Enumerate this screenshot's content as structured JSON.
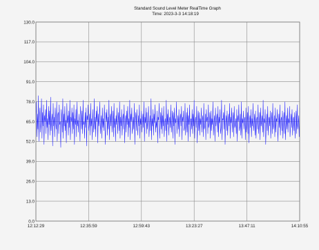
{
  "chart_data": {
    "type": "line",
    "title": "Standard Sound Level Meter RealTime Graph",
    "subtitle": "Time: 2023-3-3  14:18:19",
    "xlabel": "",
    "ylabel": "",
    "ylim": [
      0,
      130
    ],
    "y_ticks": [
      "130.0",
      "117.0",
      "104.0",
      "91.0",
      "78.0",
      "65.0",
      "52.0",
      "39.0",
      "26.0",
      "13.0",
      "0.0"
    ],
    "x_ticks": [
      "12:12:29",
      "12:35:59",
      "12:59:43",
      "13:23:27",
      "13:47:11",
      "14:10:55"
    ],
    "grid": true,
    "series": [
      {
        "color": "#2020ff",
        "x_range": [
          "12:12:29",
          "14:10:55"
        ],
        "mean": 64,
        "typical_min": 47,
        "typical_max": 79,
        "values": [
          64,
          78,
          55,
          70,
          60,
          82,
          52,
          68,
          74,
          58,
          66,
          80,
          54,
          71,
          62,
          76,
          50,
          69,
          65,
          73,
          57,
          79,
          61,
          67,
          53,
          75,
          63,
          72,
          56,
          81,
          59,
          66,
          70,
          49,
          77,
          62,
          68,
          55,
          74,
          64,
          60,
          78,
          52,
          69,
          71,
          57,
          76,
          63,
          65,
          48,
          73,
          67,
          58,
          80,
          54,
          70,
          62,
          75,
          59,
          66,
          51,
          77,
          64,
          69,
          56,
          72,
          61,
          79,
          53,
          68,
          65,
          74,
          57,
          71,
          60,
          76,
          50,
          67,
          63,
          73,
          55,
          78,
          62,
          66,
          58,
          70,
          64,
          52,
          75,
          68,
          60,
          72,
          57,
          79,
          63,
          65,
          54,
          71,
          61,
          74,
          49,
          69,
          66,
          76,
          59,
          63,
          70,
          56,
          77,
          62,
          67,
          53,
          73,
          64,
          58,
          80,
          60,
          68,
          55,
          72,
          65,
          75,
          51,
          70,
          62,
          66,
          78,
          57,
          64,
          69,
          54,
          74,
          61,
          67,
          59,
          76,
          63,
          50,
          71,
          65,
          73,
          56,
          68,
          60,
          79,
          53,
          66,
          70,
          62,
          75,
          58,
          64,
          72,
          55,
          77,
          61,
          67,
          52,
          69,
          63,
          74,
          57,
          65,
          71,
          59,
          78,
          54,
          68,
          62,
          73,
          56,
          66,
          70,
          60,
          76,
          51,
          64,
          69,
          58,
          72,
          63,
          75,
          55,
          67,
          61,
          79,
          53,
          70,
          65,
          74,
          57,
          62,
          68,
          60,
          77,
          50,
          66,
          71,
          59,
          73,
          64,
          56,
          69,
          62,
          76,
          54,
          67,
          63,
          72,
          58,
          65,
          70,
          61,
          78,
          52,
          68,
          64,
          74,
          57,
          71,
          60,
          66,
          75,
          55,
          63,
          69,
          59,
          80,
          53,
          67,
          62,
          73,
          56,
          70,
          64,
          76,
          58,
          65,
          61,
          72,
          51,
          68,
          66,
          77,
          54,
          63,
          71,
          60,
          74,
          57,
          69,
          62,
          75,
          55,
          64,
          67,
          59,
          79,
          52,
          70,
          63,
          73,
          56,
          66,
          68,
          61,
          76,
          58,
          65,
          72,
          54,
          71,
          62,
          74,
          50,
          67,
          64,
          78,
          57,
          63,
          69,
          60,
          73,
          55,
          66,
          70,
          62,
          75,
          53,
          68,
          65,
          72,
          59,
          61,
          77,
          56,
          64,
          71,
          58,
          74,
          52,
          69,
          63,
          76,
          55,
          66,
          67,
          60,
          73,
          57,
          70,
          62,
          79,
          54,
          65,
          68,
          61,
          75,
          51,
          64,
          72,
          59,
          71,
          56,
          67,
          63,
          74,
          58,
          66,
          69,
          55,
          77,
          60,
          62,
          70,
          53,
          73,
          65,
          68,
          57,
          76,
          61,
          64,
          71,
          54,
          72,
          59,
          67,
          63,
          78,
          56,
          65,
          69,
          52,
          74,
          62,
          66,
          70,
          58,
          75,
          55,
          68,
          64,
          73,
          57,
          61,
          79,
          53,
          67,
          66,
          71,
          60,
          76,
          50,
          63,
          69,
          59,
          72,
          56,
          65,
          70,
          62,
          77,
          54,
          68,
          64,
          74,
          58,
          66,
          71,
          55,
          75,
          61,
          63,
          67,
          57,
          73,
          52,
          69,
          65,
          76,
          59,
          62,
          70,
          56,
          78,
          54,
          67,
          64,
          72,
          60,
          66,
          68,
          53,
          74,
          58,
          63,
          71,
          57,
          75,
          51,
          65,
          69,
          61,
          73,
          55,
          67,
          62,
          77,
          59,
          64,
          70,
          56,
          72,
          54,
          66,
          68,
          60,
          76,
          57,
          63,
          71,
          53,
          74,
          62,
          65,
          69,
          58,
          79,
          55,
          67,
          64,
          73,
          50,
          61,
          70,
          59,
          75,
          56,
          66,
          68,
          62,
          72,
          54,
          64,
          71,
          57,
          77,
          60,
          63,
          69,
          55,
          74,
          58,
          67,
          65,
          73,
          52,
          62,
          70,
          61,
          76,
          56,
          66,
          68,
          59,
          72,
          54,
          65,
          71,
          57,
          78,
          53,
          63,
          69,
          60,
          74,
          58,
          67,
          64,
          75,
          55,
          62,
          70,
          61,
          73,
          56,
          66,
          68,
          59,
          71,
          54,
          64,
          72,
          57,
          76,
          60,
          63,
          69,
          55,
          74
        ]
      }
    ]
  }
}
